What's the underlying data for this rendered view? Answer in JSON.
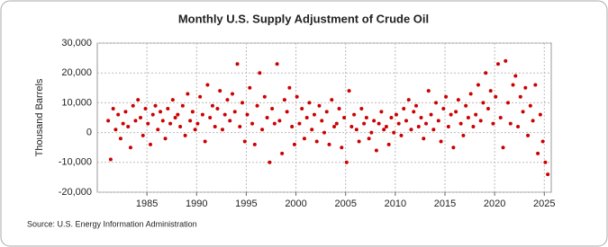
{
  "chart_data": {
    "type": "scatter",
    "title": "Monthly U.S. Supply Adjustment of Crude Oil",
    "y_label": "Thousand Barrels",
    "source": "Source: U.S. Energy Information Administration",
    "color": "#cc0000",
    "grid": true,
    "xlim": [
      1980,
      2025.7
    ],
    "xticks": [
      1985,
      1990,
      1995,
      2000,
      2005,
      2010,
      2015,
      2020,
      2025
    ],
    "ylim": [
      -20000,
      30000
    ],
    "yticks": [
      {
        "value": -20000,
        "label": "-20,000"
      },
      {
        "value": -10000,
        "label": "-10,000"
      },
      0,
      {
        "value": 10000,
        "label": "10,000"
      },
      {
        "value": 20000,
        "label": "20,000"
      },
      {
        "value": 30000,
        "label": "30,000"
      }
    ],
    "x": [
      1981.1,
      1981.35,
      1981.6,
      1981.85,
      1982.1,
      1982.35,
      1982.6,
      1982.85,
      1983.1,
      1983.35,
      1983.6,
      1983.85,
      1984.1,
      1984.35,
      1984.6,
      1984.85,
      1985.1,
      1985.35,
      1985.6,
      1985.85,
      1986.1,
      1986.35,
      1986.6,
      1986.85,
      1987.1,
      1987.35,
      1987.6,
      1987.85,
      1988.1,
      1988.35,
      1988.6,
      1988.85,
      1989.1,
      1989.35,
      1989.6,
      1989.85,
      1990.1,
      1990.35,
      1990.6,
      1990.85,
      1991.1,
      1991.35,
      1991.6,
      1991.85,
      1992.1,
      1992.35,
      1992.6,
      1992.85,
      1993.1,
      1993.35,
      1993.6,
      1993.85,
      1994.1,
      1994.35,
      1994.6,
      1994.85,
      1995.1,
      1995.35,
      1995.6,
      1995.85,
      1996.1,
      1996.35,
      1996.6,
      1996.85,
      1997.1,
      1997.35,
      1997.6,
      1997.85,
      1998.1,
      1998.35,
      1998.6,
      1998.85,
      1999.1,
      1999.35,
      1999.6,
      1999.85,
      2000.1,
      2000.35,
      2000.6,
      2000.85,
      2001.1,
      2001.35,
      2001.6,
      2001.85,
      2002.1,
      2002.35,
      2002.6,
      2002.85,
      2003.1,
      2003.35,
      2003.6,
      2003.85,
      2004.1,
      2004.35,
      2004.6,
      2004.85,
      2005.1,
      2005.35,
      2005.6,
      2005.85,
      2006.1,
      2006.35,
      2006.6,
      2006.85,
      2007.1,
      2007.35,
      2007.6,
      2007.85,
      2008.1,
      2008.35,
      2008.6,
      2008.85,
      2009.1,
      2009.35,
      2009.6,
      2009.85,
      2010.1,
      2010.35,
      2010.6,
      2010.85,
      2011.1,
      2011.35,
      2011.6,
      2011.85,
      2012.1,
      2012.35,
      2012.6,
      2012.85,
      2013.1,
      2013.35,
      2013.6,
      2013.85,
      2014.1,
      2014.35,
      2014.6,
      2014.85,
      2015.1,
      2015.35,
      2015.6,
      2015.85,
      2016.1,
      2016.35,
      2016.6,
      2016.85,
      2017.1,
      2017.35,
      2017.6,
      2017.85,
      2018.1,
      2018.35,
      2018.6,
      2018.85,
      2019.1,
      2019.35,
      2019.6,
      2019.85,
      2020.1,
      2020.35,
      2020.6,
      2020.85,
      2021.1,
      2021.35,
      2021.6,
      2021.85,
      2022.1,
      2022.35,
      2022.6,
      2022.85,
      2023.1,
      2023.35,
      2023.6,
      2023.85,
      2024.1,
      2024.35,
      2024.6,
      2024.85,
      2025.1,
      2025.35
    ],
    "values": [
      4000,
      -9000,
      8000,
      1000,
      6000,
      -2000,
      3000,
      7000,
      2000,
      -5000,
      9000,
      4000,
      11000,
      5000,
      -1000,
      8000,
      3000,
      -4000,
      6000,
      9000,
      1000,
      7000,
      4000,
      -2000,
      8000,
      3000,
      11000,
      5000,
      6000,
      2000,
      9000,
      -1000,
      13000,
      4000,
      7000,
      1000,
      3000,
      12000,
      6000,
      -3000,
      16000,
      5000,
      9000,
      2000,
      8000,
      14000,
      1000,
      6000,
      11000,
      4000,
      13000,
      7000,
      23000,
      2000,
      10000,
      -3000,
      6000,
      15000,
      3000,
      -4000,
      9000,
      20000,
      1000,
      12000,
      5000,
      -10000,
      8000,
      3000,
      23000,
      4000,
      -7000,
      11000,
      7000,
      15000,
      2000,
      -4000,
      12000,
      3000,
      8000,
      -2000,
      5000,
      10000,
      1000,
      6000,
      -3000,
      9000,
      4000,
      0,
      7000,
      -4000,
      11000,
      2000,
      3000,
      8000,
      -5000,
      5000,
      -10000,
      14000,
      2000,
      6000,
      1000,
      -3000,
      8000,
      3000,
      5000,
      -2000,
      0,
      4000,
      -6000,
      3000,
      7000,
      1000,
      2000,
      -4000,
      5000,
      0,
      6000,
      3000,
      -1000,
      8000,
      4000,
      11000,
      1000,
      7000,
      9000,
      2000,
      5000,
      -2000,
      3000,
      14000,
      6000,
      1000,
      10000,
      4000,
      -3000,
      8000,
      12000,
      2000,
      6000,
      -5000,
      7000,
      11000,
      3000,
      -1000,
      9000,
      5000,
      13000,
      2000,
      6000,
      16000,
      4000,
      10000,
      20000,
      8000,
      14000,
      3000,
      12000,
      23000,
      5000,
      -5000,
      24000,
      10000,
      3000,
      16000,
      19000,
      2000,
      12000,
      7000,
      15000,
      -1000,
      9000,
      4000,
      16000,
      -7000,
      6000,
      -3000,
      -10000,
      -14000
    ]
  }
}
